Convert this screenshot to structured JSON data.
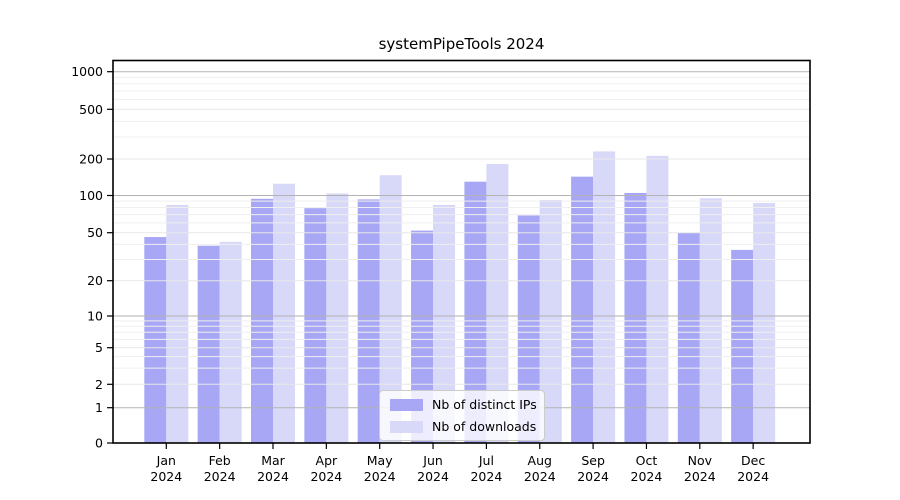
{
  "chart_data": {
    "type": "bar",
    "title": "systemPipeTools 2024",
    "months": [
      "Jan",
      "Feb",
      "Mar",
      "Apr",
      "May",
      "Jun",
      "Jul",
      "Aug",
      "Sep",
      "Oct",
      "Nov",
      "Dec"
    ],
    "year_label": "2024",
    "series": [
      {
        "name": "Nb of distinct IPs",
        "color": "#a7a7f5",
        "values": [
          46,
          39,
          94,
          79,
          93,
          52,
          130,
          69,
          143,
          105,
          50,
          36
        ]
      },
      {
        "name": "Nb of downloads",
        "color": "#d8d8f8",
        "values": [
          84,
          42,
          125,
          104,
          147,
          84,
          182,
          92,
          230,
          212,
          95,
          87
        ]
      }
    ],
    "y_ticks": [
      0,
      1,
      2,
      5,
      10,
      20,
      50,
      100,
      200,
      500,
      1000
    ],
    "y_scale": "log-like with linear segment 0-1",
    "ylim": [
      0,
      1200
    ],
    "grid": true,
    "legend_position": "lower center, inside plot",
    "colors": {
      "major_gridline": "#b3b3b3",
      "minor_gridline": "#efefef",
      "tick_gridline": "#e7e7e7",
      "axis": "#000000"
    }
  }
}
